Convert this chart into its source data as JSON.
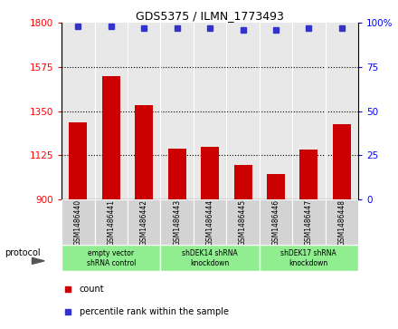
{
  "title": "GDS5375 / ILMN_1773493",
  "samples": [
    "GSM1486440",
    "GSM1486441",
    "GSM1486442",
    "GSM1486443",
    "GSM1486444",
    "GSM1486445",
    "GSM1486446",
    "GSM1486447",
    "GSM1486448"
  ],
  "counts": [
    1290,
    1530,
    1380,
    1160,
    1165,
    1075,
    1030,
    1155,
    1285
  ],
  "percentiles": [
    98,
    98,
    97,
    97,
    97,
    96,
    96,
    97,
    97
  ],
  "ylim_left": [
    900,
    1800
  ],
  "ylim_right": [
    0,
    100
  ],
  "yticks_left": [
    900,
    1125,
    1350,
    1575,
    1800
  ],
  "yticks_right": [
    0,
    25,
    50,
    75,
    100
  ],
  "bar_color": "#cc0000",
  "dot_color": "#3333cc",
  "groups": [
    {
      "label": "empty vector\nshRNA control",
      "indices": [
        0,
        1,
        2
      ],
      "color": "#90ee90"
    },
    {
      "label": "shDEK14 shRNA\nknockdown",
      "indices": [
        3,
        4,
        5
      ],
      "color": "#90ee90"
    },
    {
      "label": "shDEK17 shRNA\nknockdown",
      "indices": [
        6,
        7,
        8
      ],
      "color": "#90ee90"
    }
  ],
  "legend_count_label": "count",
  "legend_pct_label": "percentile rank within the sample",
  "protocol_label": "protocol",
  "bg_color": "#e8e8e8",
  "sample_cell_color": "#d3d3d3",
  "bar_width": 0.55
}
